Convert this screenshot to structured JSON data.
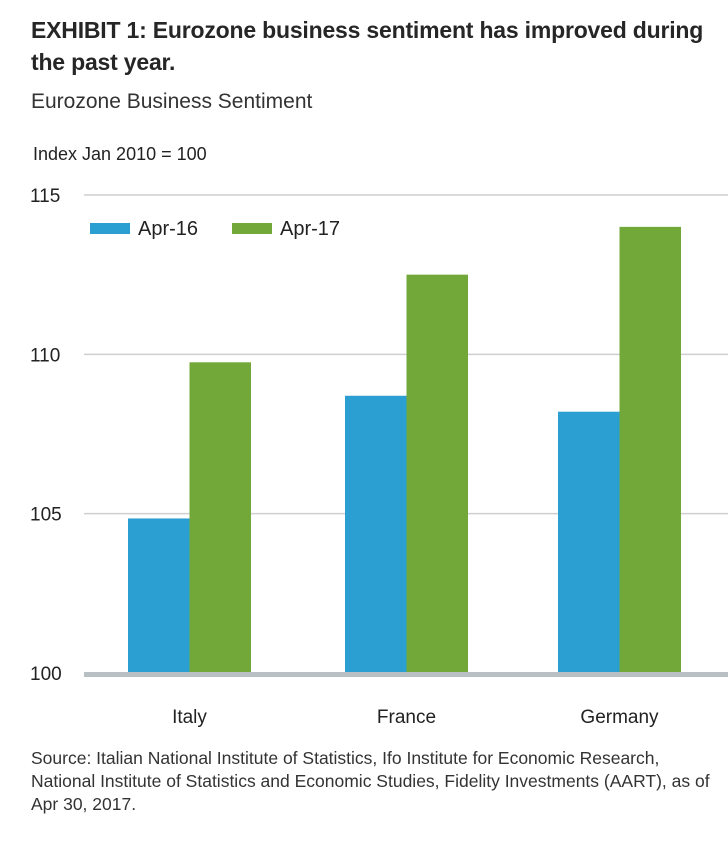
{
  "header": {
    "title": "EXHIBIT 1: Eurozone business sentiment has improved during the past year.",
    "subtitle": "Eurozone Business Sentiment",
    "unit_label": "Index Jan 2010 = 100"
  },
  "footer": {
    "source": "Source: Italian National Institute of Statistics, Ifo Institute for Economic Research, National Institute of Statistics and Economic Studies, Fidelity Investments (AART), as of Apr 30, 2017."
  },
  "chart_data": {
    "type": "bar",
    "title": "Eurozone Business Sentiment",
    "xlabel": "",
    "ylabel": "Index Jan 2010 = 100",
    "ylim": [
      100,
      115
    ],
    "yticks": [
      100,
      105,
      110,
      115
    ],
    "grid": true,
    "legend_position": "top-left",
    "categories": [
      "Italy",
      "France",
      "Germany"
    ],
    "series": [
      {
        "name": "Apr-16",
        "color": "#2b9fd1",
        "values": [
          104.85,
          108.7,
          108.2
        ]
      },
      {
        "name": "Apr-17",
        "color": "#72a83a",
        "values": [
          109.75,
          112.5,
          114.0
        ]
      }
    ]
  }
}
